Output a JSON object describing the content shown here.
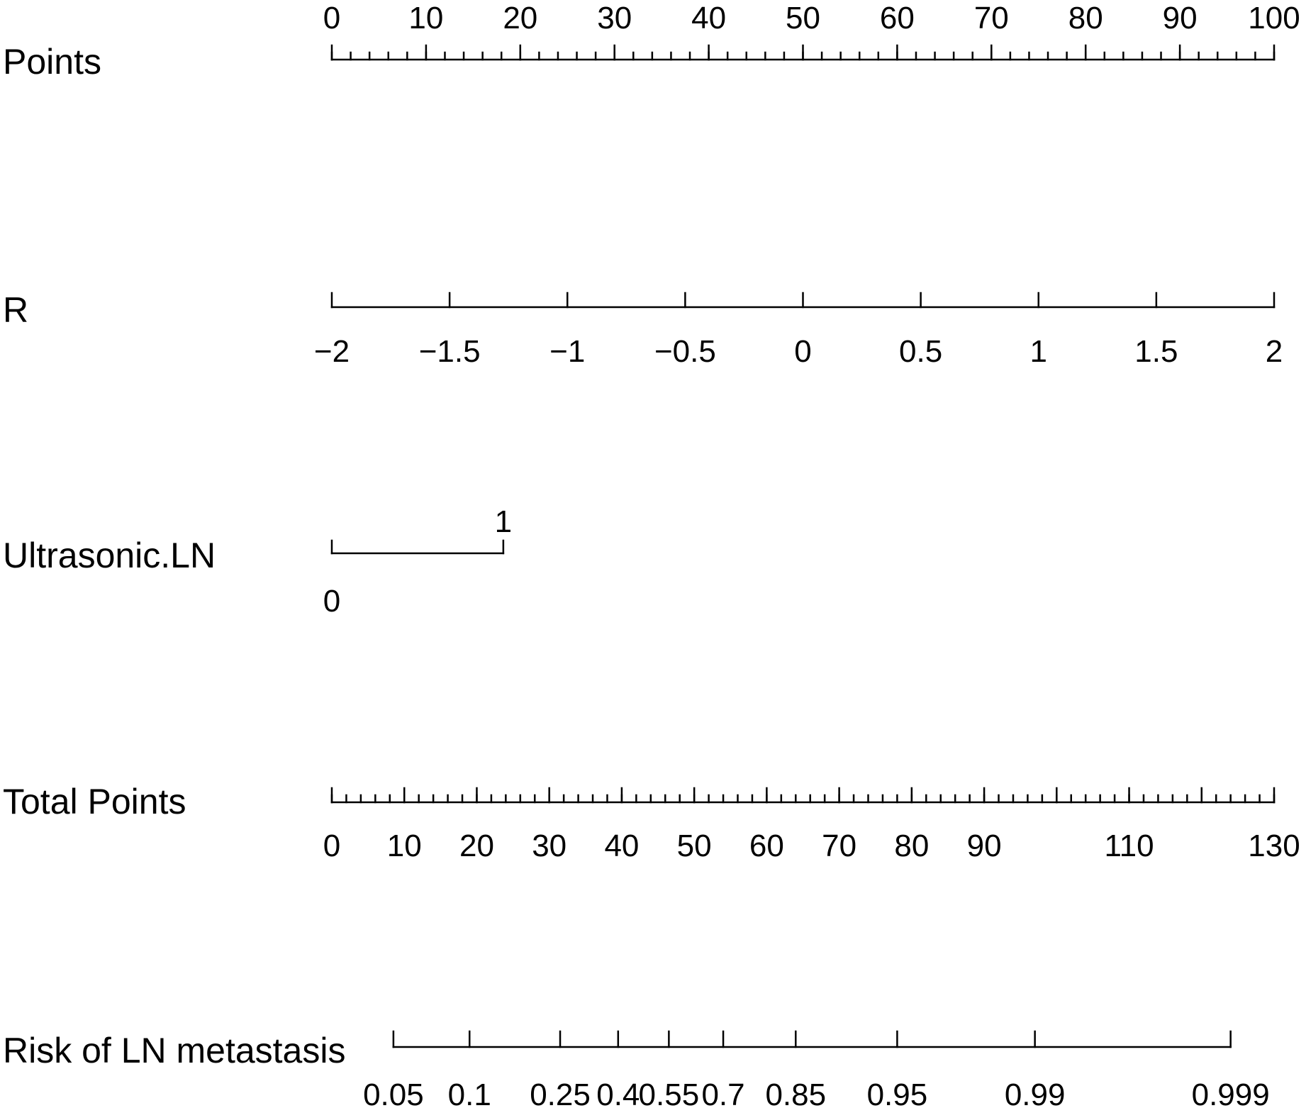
{
  "chart_data": {
    "type": "nomogram",
    "rows": [
      {
        "label": "Points",
        "kind": "points",
        "ticks": [
          {
            "p": 0,
            "label": "0"
          },
          {
            "p": 10,
            "label": "10"
          },
          {
            "p": 20,
            "label": "20"
          },
          {
            "p": 30,
            "label": "30"
          },
          {
            "p": 40,
            "label": "40"
          },
          {
            "p": 50,
            "label": "50"
          },
          {
            "p": 60,
            "label": "60"
          },
          {
            "p": 70,
            "label": "70"
          },
          {
            "p": 80,
            "label": "80"
          },
          {
            "p": 90,
            "label": "90"
          },
          {
            "p": 100,
            "label": "100"
          }
        ],
        "minor_step": 2,
        "range": [
          0,
          100
        ]
      },
      {
        "label": "R",
        "kind": "continuous",
        "ticks": [
          {
            "p": 0,
            "label": "−2"
          },
          {
            "p": 12.5,
            "label": "−1.5"
          },
          {
            "p": 25,
            "label": "−1"
          },
          {
            "p": 37.5,
            "label": "−0.5"
          },
          {
            "p": 50,
            "label": "0"
          },
          {
            "p": 62.5,
            "label": "0.5"
          },
          {
            "p": 75,
            "label": "1"
          },
          {
            "p": 87.5,
            "label": "1.5"
          },
          {
            "p": 100,
            "label": "2"
          }
        ],
        "range": [
          0,
          100
        ]
      },
      {
        "label": "Ultrasonic.LN",
        "kind": "categorical",
        "ticks": [
          {
            "p": 0,
            "label": "0",
            "side": "below"
          },
          {
            "p": 18.2,
            "label": "1",
            "side": "above"
          }
        ],
        "range": [
          0,
          18.2
        ]
      },
      {
        "label": "Total Points",
        "kind": "total",
        "ticks": [
          {
            "t": 0,
            "label": "0"
          },
          {
            "t": 10,
            "label": "10"
          },
          {
            "t": 20,
            "label": "20"
          },
          {
            "t": 30,
            "label": "30"
          },
          {
            "t": 40,
            "label": "40"
          },
          {
            "t": 50,
            "label": "50"
          },
          {
            "t": 60,
            "label": "60"
          },
          {
            "t": 70,
            "label": "70"
          },
          {
            "t": 80,
            "label": "80"
          },
          {
            "t": 90,
            "label": "90"
          },
          {
            "t": 100,
            "label": ""
          },
          {
            "t": 110,
            "label": "110"
          },
          {
            "t": 120,
            "label": ""
          },
          {
            "t": 130,
            "label": "130"
          }
        ],
        "minor_step": 2,
        "range": [
          0,
          130
        ]
      },
      {
        "label": "Risk of LN metastasis",
        "kind": "risk",
        "ticks": [
          {
            "t": 8.5,
            "label": "0.05"
          },
          {
            "t": 19.0,
            "label": "0.1"
          },
          {
            "t": 31.5,
            "label": "0.25"
          },
          {
            "t": 39.5,
            "label": "0.4"
          },
          {
            "t": 46.5,
            "label": "0.55"
          },
          {
            "t": 54.0,
            "label": "0.7"
          },
          {
            "t": 64.0,
            "label": "0.85"
          },
          {
            "t": 78.0,
            "label": "0.95"
          },
          {
            "t": 97.0,
            "label": "0.99"
          },
          {
            "t": 124.0,
            "label": "0.999"
          }
        ],
        "range": [
          8.5,
          124.0
        ]
      }
    ]
  }
}
